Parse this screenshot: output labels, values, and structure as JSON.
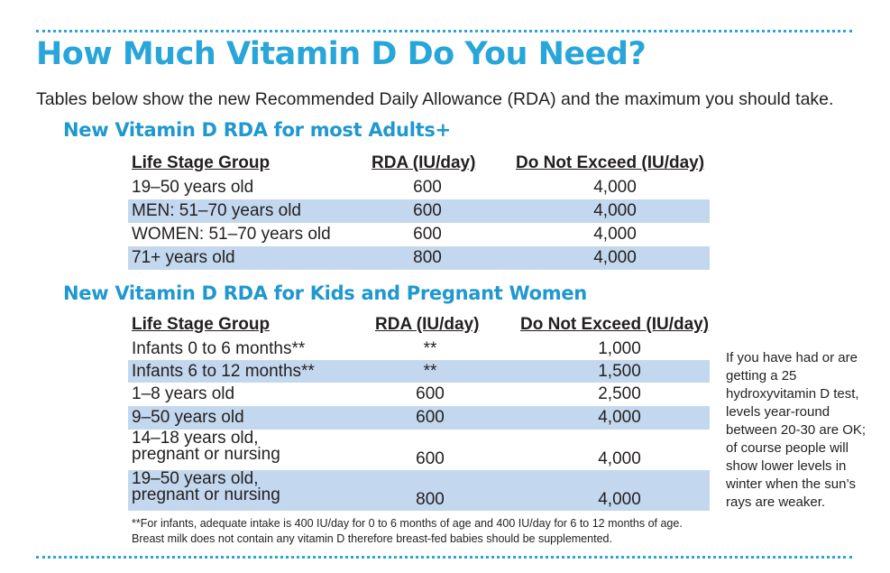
{
  "title": "How Much Vitamin D Do You Need?",
  "intro": "Tables below show the new Recommended Daily Allowance (RDA) and the maximum you should take.",
  "adults": {
    "heading": "New Vitamin D RDA for most Adults+",
    "columns": [
      "Life Stage Group",
      "RDA (IU/day)",
      "Do Not Exceed (IU/day)"
    ],
    "rows": [
      {
        "age": "19–50 years old",
        "rda": "600",
        "max": "4,000"
      },
      {
        "age": "MEN: 51–70 years old",
        "rda": "600",
        "max": "4,000"
      },
      {
        "age": "WOMEN: 51–70 years old",
        "rda": "600",
        "max": "4,000"
      },
      {
        "age": "71+ years old",
        "rda": "800",
        "max": "4,000"
      }
    ]
  },
  "kids": {
    "heading": "New Vitamin D RDA for Kids and Pregnant Women",
    "columns": [
      "Life Stage Group",
      "RDA (IU/day)",
      "Do Not Exceed (IU/day)"
    ],
    "rows": [
      {
        "age": "Infants 0 to 6 months**",
        "rda": "**",
        "max": "1,000"
      },
      {
        "age": "Infants 6 to 12 months**",
        "rda": "**",
        "max": "1,500"
      },
      {
        "age": "1–8 years old",
        "rda": "600",
        "max": "2,500"
      },
      {
        "age": "9–50 years old",
        "rda": "600",
        "max": "4,000"
      },
      {
        "age_line1": "14–18 years old,",
        "age_line2": "pregnant or nursing",
        "rda": "600",
        "max": "4,000"
      },
      {
        "age_line1": "19–50 years old,",
        "age_line2": "pregnant or nursing",
        "rda": "800",
        "max": "4,000"
      }
    ]
  },
  "footnote": "**For infants, adequate intake is 400 IU/day for 0 to 6 months of age and 400 IU/day for 6 to 12 months of age. Breast milk does not contain any vitamin D therefore breast-fed babies should be supplemented.",
  "sidenote": "If you have had or are getting a 25 hydroxyvitamin D test, levels year-round between 20-30 are OK; of course people will show lower levels in winter when the sun’s rays are weaker.",
  "colors": {
    "accent": "#29a6d9",
    "row_shade": "#c3d8ee"
  }
}
